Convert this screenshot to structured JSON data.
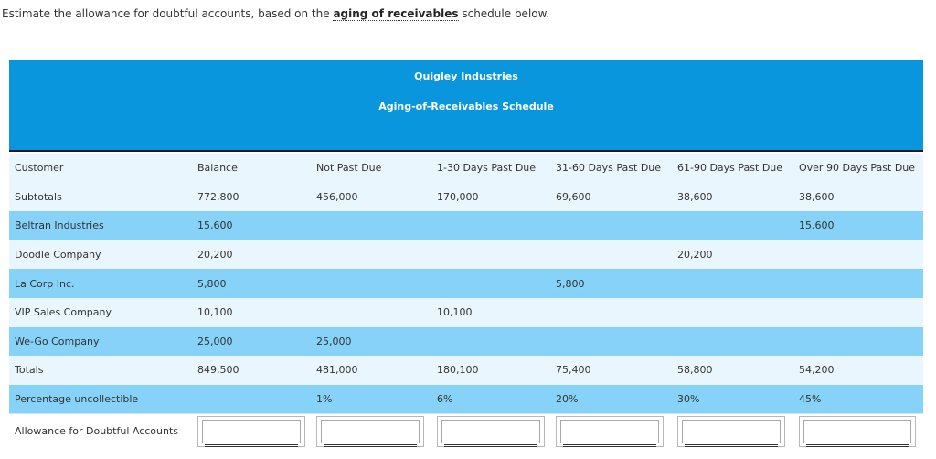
{
  "intro": {
    "prefix": "Estimate the allowance for doubtful accounts, based on the ",
    "link": "aging of receivables",
    "suffix": " schedule below."
  },
  "header": {
    "company": "Quigley Industries",
    "subtitle": "Aging-of-Receivables Schedule",
    "bg_color": "#0a96dc"
  },
  "columns": [
    "Customer",
    "Balance",
    "Not Past Due",
    "1-30 Days Past Due",
    "31-60 Days Past Due",
    "61-90 Days Past Due",
    "Over 90 Days Past Due"
  ],
  "rows": [
    [
      "Subtotals",
      "772,800",
      "456,000",
      "170,000",
      "69,600",
      "38,600",
      "38,600"
    ],
    [
      "Beltran Industries",
      "15,600",
      "",
      "",
      "",
      "",
      "15,600"
    ],
    [
      "Doodle Company",
      "20,200",
      "",
      "",
      "",
      "20,200",
      ""
    ],
    [
      "La Corp Inc.",
      "5,800",
      "",
      "",
      "5,800",
      "",
      ""
    ],
    [
      "VIP Sales Company",
      "10,100",
      "",
      "10,100",
      "",
      "",
      ""
    ],
    [
      "We-Go Company",
      "25,000",
      "25,000",
      "",
      "",
      "",
      ""
    ],
    [
      "Totals",
      "849,500",
      "481,000",
      "180,100",
      "75,400",
      "58,800",
      "54,200"
    ]
  ],
  "percentage": {
    "label": "Percentage uncollectible",
    "values": [
      "1%",
      "6%",
      "20%",
      "30%",
      "45%"
    ]
  },
  "allowance": {
    "label": "Allowance for Doubtful Accounts",
    "inputs": [
      "",
      "",
      "",
      "",
      "",
      ""
    ]
  },
  "colors": {
    "row_light": "#eaf6fd",
    "row_dark": "#86d2f8"
  }
}
